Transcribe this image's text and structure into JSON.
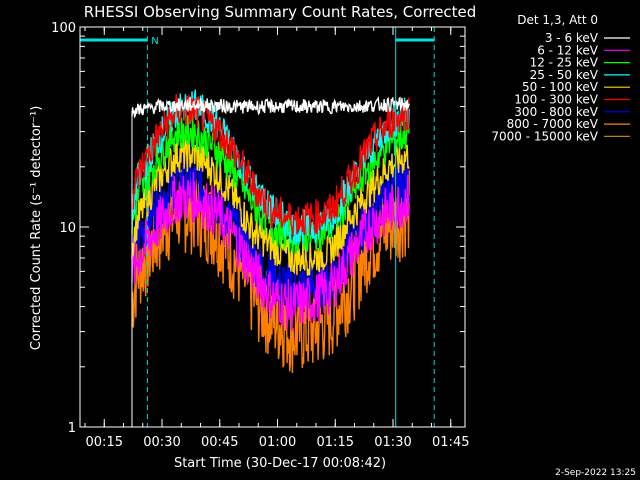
{
  "chart_data": {
    "type": "line",
    "title": "RHESSI Observing Summary Count Rates, Corrected",
    "xlabel": "Start Time (30-Dec-17 00:08:42)",
    "ylabel": "Corrected Count Rate (s⁻¹ detector⁻¹)",
    "x_unit": "minutes after 00:08:42",
    "xlim": [
      0,
      100
    ],
    "ylim": [
      1,
      100
    ],
    "yscale": "log",
    "x_ticks": [
      "00:15",
      "00:30",
      "00:45",
      "01:00",
      "01:15",
      "01:30",
      "01:45"
    ],
    "y_ticks": [
      "1",
      "10",
      "100"
    ],
    "legend_header": "Det 1,3, Att 0",
    "legend_position": "outside-top-right",
    "timestamp": "2-Sep-2022 13:25",
    "annotations": [
      {
        "text": "N",
        "x": 18.5,
        "type": "night"
      },
      {
        "type": "saa",
        "x_start": 0,
        "x_end": 17.5
      },
      {
        "type": "saa",
        "x_start": 82,
        "x_end": 92
      }
    ],
    "vlines": [
      {
        "x": 0,
        "style": "solid"
      },
      {
        "x": 17.5,
        "style": "dashed"
      },
      {
        "x": 82,
        "style": "solid"
      },
      {
        "x": 92,
        "style": "dashed"
      }
    ],
    "data_start": 13.5,
    "data_end": 85.5,
    "series": [
      {
        "name": "3 - 6 keV",
        "color": "#ffffff",
        "x": [
          13.5,
          20,
          30,
          40,
          50,
          60,
          70,
          80,
          85.5
        ],
        "values": [
          38,
          40,
          41,
          40,
          40,
          40,
          40,
          41,
          41
        ]
      },
      {
        "name": "6 - 12 keV",
        "color": "#ff00ff",
        "x": [
          13.5,
          15,
          20,
          25,
          30,
          35,
          40,
          45,
          50,
          55,
          60,
          65,
          70,
          75,
          80,
          85.5
        ],
        "values": [
          5.5,
          7,
          10,
          14,
          14,
          12,
          9,
          6,
          4.5,
          4,
          4.3,
          4.8,
          7,
          10,
          12,
          14
        ]
      },
      {
        "name": "12 - 25 keV",
        "color": "#00ff00",
        "x": [
          13.5,
          15,
          20,
          25,
          30,
          35,
          40,
          45,
          50,
          55,
          60,
          65,
          70,
          75,
          80,
          85.5
        ],
        "values": [
          10,
          14,
          22,
          30,
          30,
          25,
          19,
          13,
          10,
          9,
          9,
          10,
          14,
          20,
          26,
          30
        ]
      },
      {
        "name": "25 - 50 keV",
        "color": "#00ffff",
        "x": [
          13.5,
          15,
          20,
          25,
          30,
          35,
          40,
          45,
          50,
          55,
          60,
          65,
          70,
          75,
          80,
          85.5
        ],
        "values": [
          12,
          17,
          27,
          38,
          40,
          34,
          24,
          16,
          12,
          10,
          10,
          11,
          16,
          24,
          32,
          38
        ]
      },
      {
        "name": "50 - 100 keV",
        "color": "#ffd700",
        "x": [
          13.5,
          15,
          20,
          25,
          30,
          35,
          40,
          45,
          50,
          55,
          60,
          65,
          70,
          75,
          80,
          85.5
        ],
        "values": [
          8,
          11,
          17,
          23,
          23,
          19,
          14,
          9.5,
          8,
          7,
          7,
          7.5,
          11,
          15,
          20,
          23
        ]
      },
      {
        "name": "100 - 300 keV",
        "color": "#ff0000",
        "x": [
          13.5,
          15,
          20,
          25,
          30,
          35,
          40,
          45,
          50,
          55,
          60,
          65,
          70,
          75,
          80,
          85.5
        ],
        "values": [
          14,
          18,
          28,
          38,
          38,
          32,
          24,
          16,
          12,
          11,
          11,
          12,
          17,
          25,
          33,
          38
        ]
      },
      {
        "name": "300 - 800 keV",
        "color": "#0000ff",
        "x": [
          13.5,
          15,
          20,
          25,
          30,
          35,
          40,
          45,
          50,
          55,
          60,
          65,
          70,
          75,
          80,
          85.5
        ],
        "values": [
          7,
          9,
          13,
          17,
          17,
          14,
          10,
          7,
          5.5,
          5,
          5,
          5.5,
          8,
          11,
          15,
          17
        ]
      },
      {
        "name": "800 - 7000 keV",
        "color": "#ff8000",
        "x": [
          13.5,
          15,
          20,
          25,
          30,
          35,
          40,
          45,
          50,
          55,
          60,
          65,
          70,
          75,
          80,
          85.5
        ],
        "values": [
          4.3,
          6,
          9,
          12,
          12,
          10,
          7,
          4.5,
          3.5,
          3,
          3,
          3.5,
          5,
          8,
          10,
          12
        ]
      },
      {
        "name": "7000 - 15000 keV",
        "color": "#b8860b",
        "x": [
          13.5,
          85.5
        ],
        "values": [
          1,
          1
        ]
      }
    ]
  }
}
